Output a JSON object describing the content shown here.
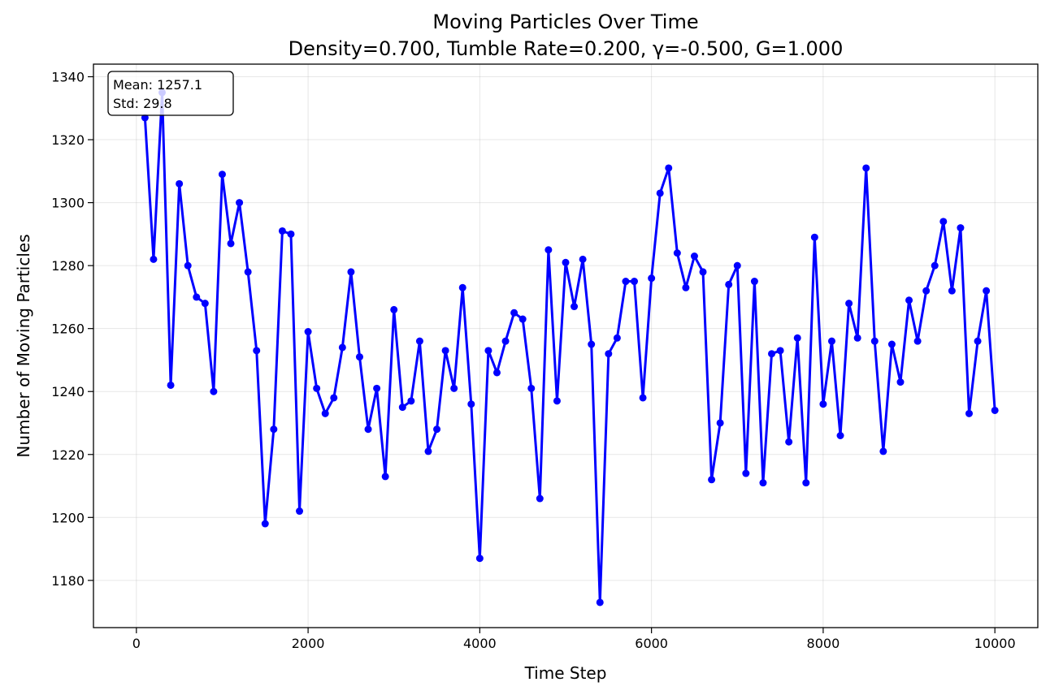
{
  "chart_data": {
    "type": "line",
    "title": "Moving Particles Over Time",
    "subtitle": "Density=0.700, Tumble Rate=0.200, γ=-0.500, G=1.000",
    "xlabel": "Time Step",
    "ylabel": "Number of Moving Particles",
    "xlim": [
      -500,
      10500
    ],
    "ylim": [
      1165,
      1344
    ],
    "xticks": [
      0,
      2000,
      4000,
      6000,
      8000,
      10000
    ],
    "yticks": [
      1180,
      1200,
      1220,
      1240,
      1260,
      1280,
      1300,
      1320,
      1340
    ],
    "grid": true,
    "line_color": "#0000ff",
    "stats_box": {
      "mean_text": "Mean: 1257.1",
      "std_text": "Std: 29.8",
      "placement": "top-left"
    },
    "x": [
      100,
      200,
      300,
      400,
      500,
      600,
      700,
      800,
      900,
      1000,
      1100,
      1200,
      1300,
      1400,
      1500,
      1600,
      1700,
      1800,
      1900,
      2000,
      2100,
      2200,
      2300,
      2400,
      2500,
      2600,
      2700,
      2800,
      2900,
      3000,
      3100,
      3200,
      3300,
      3400,
      3500,
      3600,
      3700,
      3800,
      3900,
      4000,
      4100,
      4200,
      4300,
      4400,
      4500,
      4600,
      4700,
      4800,
      4900,
      5000,
      5100,
      5200,
      5300,
      5400,
      5500,
      5600,
      5700,
      5800,
      5900,
      6000,
      6100,
      6200,
      6300,
      6400,
      6500,
      6600,
      6700,
      6800,
      6900,
      7000,
      7100,
      7200,
      7300,
      7400,
      7500,
      7600,
      7700,
      7800,
      7900,
      8000,
      8100,
      8200,
      8300,
      8400,
      8500,
      8600,
      8700,
      8800,
      8900,
      9000,
      9100,
      9200,
      9300,
      9400,
      9500,
      9600,
      9700,
      9800,
      9900,
      10000
    ],
    "series": [
      {
        "values": [
          1327,
          1282,
          1335,
          1242,
          1306,
          1280,
          1270,
          1268,
          1240,
          1309,
          1287,
          1300,
          1278,
          1253,
          1198,
          1228,
          1291,
          1290,
          1202,
          1259,
          1241,
          1233,
          1238,
          1254,
          1278,
          1251,
          1228,
          1241,
          1213,
          1266,
          1235,
          1237,
          1256,
          1221,
          1228,
          1253,
          1241,
          1273,
          1236,
          1187,
          1253,
          1246,
          1256,
          1265,
          1263,
          1241,
          1206,
          1285,
          1237,
          1281,
          1267,
          1282,
          1255,
          1173,
          1252,
          1257,
          1275,
          1275,
          1238,
          1276,
          1303,
          1311,
          1284,
          1273,
          1283,
          1278,
          1212,
          1230,
          1274,
          1280,
          1214,
          1275,
          1211,
          1252,
          1253,
          1224,
          1257,
          1211,
          1289,
          1236,
          1256,
          1226,
          1268,
          1257,
          1311,
          1256,
          1221,
          1255,
          1243,
          1269,
          1256,
          1272,
          1280,
          1294,
          1272,
          1292,
          1233,
          1256,
          1272,
          1234
        ]
      }
    ]
  }
}
